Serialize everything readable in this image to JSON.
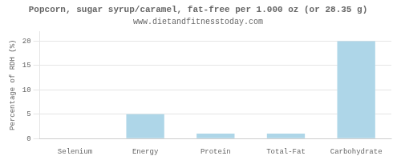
{
  "chart_data": {
    "type": "bar",
    "title": "Popcorn, sugar syrup/caramel, fat-free per 1.000 oz (or 28.35 g)",
    "subtitle": "www.dietandfitnesstoday.com",
    "categories": [
      "Selenium",
      "Energy",
      "Protein",
      "Total-Fat",
      "Carbohydrate"
    ],
    "values": [
      0,
      5,
      1,
      1,
      20
    ],
    "color": "#aed6e8",
    "ylabel": "Percentage of RDH (%)",
    "ylim": [
      0,
      22
    ],
    "yticks": [
      0,
      5,
      10,
      15,
      20
    ],
    "grid": true
  }
}
